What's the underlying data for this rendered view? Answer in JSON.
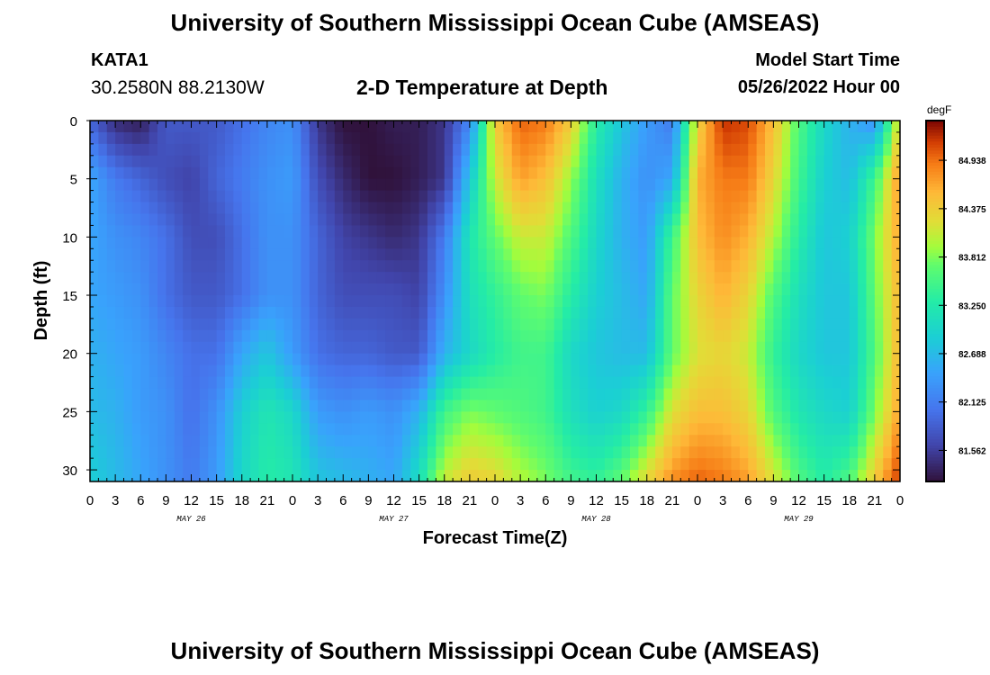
{
  "titles": {
    "top": "University of Southern Mississippi Ocean Cube (AMSEAS)",
    "bottom": "University of Southern Mississippi Ocean Cube (AMSEAS)"
  },
  "station": {
    "id": "KATA1",
    "coords": "30.2580N  88.2130W"
  },
  "plot_title": "2-D Temperature at Depth",
  "model_start": {
    "label": "Model Start Time",
    "value": "05/26/2022 Hour 00"
  },
  "chart_data": {
    "type": "heatmap",
    "title": "2-D Temperature at Depth",
    "xlabel": "Forecast Time(Z)",
    "ylabel": "Depth (ft)",
    "x_range_hours": [
      0,
      96
    ],
    "x_tick_labels": [
      "0",
      "3",
      "6",
      "9",
      "12",
      "15",
      "18",
      "21",
      "0",
      "3",
      "6",
      "9",
      "12",
      "15",
      "18",
      "21",
      "0",
      "3",
      "6",
      "9",
      "12",
      "15",
      "18",
      "21",
      "0",
      "3",
      "6",
      "9",
      "12",
      "15",
      "18",
      "21",
      "0"
    ],
    "day_labels": [
      "MAY 26",
      "MAY 27",
      "MAY 28",
      "MAY 29"
    ],
    "y_range_ft": [
      0,
      31
    ],
    "y_ticks": [
      0,
      5,
      10,
      15,
      20,
      25,
      30
    ],
    "colorbar": {
      "units": "degF",
      "min": 81.2,
      "max": 85.4,
      "tick_labels": [
        "84.938",
        "84.375",
        "83.812",
        "83.250",
        "82.688",
        "82.125",
        "81.562"
      ],
      "tick_values": [
        84.938,
        84.375,
        83.812,
        83.25,
        82.688,
        82.125,
        81.562
      ]
    },
    "depths_ft": [
      0,
      5,
      10,
      15,
      20,
      25,
      31
    ],
    "time_hours": [
      0,
      3,
      6,
      9,
      12,
      15,
      18,
      21,
      24,
      27,
      30,
      33,
      36,
      39,
      42,
      45,
      48,
      51,
      54,
      57,
      60,
      63,
      66,
      69,
      72,
      75,
      78,
      81,
      84,
      87,
      90,
      93,
      96
    ],
    "temperature_degF": [
      [
        81.9,
        81.4,
        81.3,
        81.8,
        81.8,
        81.8,
        82.0,
        82.2,
        82.3,
        81.5,
        81.2,
        81.2,
        81.3,
        81.3,
        81.5,
        82.2,
        84.4,
        85.0,
        84.9,
        84.4,
        83.3,
        82.8,
        82.4,
        82.1,
        84.3,
        85.2,
        85.1,
        84.5,
        83.6,
        83.0,
        82.6,
        82.3,
        84.3
      ],
      [
        82.5,
        82.1,
        81.9,
        81.7,
        81.6,
        81.9,
        82.1,
        82.3,
        82.4,
        81.7,
        81.4,
        81.2,
        81.2,
        81.3,
        81.5,
        82.8,
        84.1,
        84.7,
        84.5,
        83.9,
        83.1,
        82.6,
        82.3,
        82.5,
        84.6,
        84.9,
        84.9,
        84.3,
        83.5,
        82.9,
        82.7,
        83.5,
        84.8
      ],
      [
        82.5,
        82.3,
        82.2,
        82.0,
        81.7,
        81.7,
        82.0,
        82.3,
        82.3,
        81.9,
        81.6,
        81.5,
        81.4,
        81.5,
        82.1,
        83.2,
        83.7,
        84.1,
        84.1,
        83.6,
        83.0,
        82.6,
        82.4,
        83.5,
        84.5,
        84.8,
        84.6,
        84.0,
        83.3,
        82.8,
        82.9,
        83.8,
        84.7
      ],
      [
        82.5,
        82.4,
        82.3,
        82.0,
        81.8,
        81.8,
        82.0,
        82.3,
        82.3,
        81.9,
        81.7,
        81.7,
        81.7,
        81.6,
        82.3,
        83.1,
        83.4,
        83.7,
        83.8,
        83.3,
        82.9,
        82.7,
        82.5,
        83.7,
        84.3,
        84.6,
        84.3,
        83.6,
        83.1,
        82.8,
        82.8,
        83.7,
        84.6
      ],
      [
        82.6,
        82.5,
        82.4,
        82.2,
        82.0,
        82.0,
        82.5,
        82.8,
        82.4,
        82.0,
        81.9,
        81.9,
        81.8,
        81.8,
        82.6,
        83.0,
        83.3,
        83.5,
        83.5,
        83.0,
        82.8,
        82.7,
        82.7,
        83.7,
        84.2,
        84.3,
        84.1,
        83.4,
        83.0,
        82.8,
        82.8,
        83.6,
        84.6
      ],
      [
        82.7,
        82.6,
        82.4,
        82.3,
        82.0,
        82.3,
        82.9,
        83.2,
        83.0,
        82.4,
        82.3,
        82.4,
        82.3,
        82.6,
        83.5,
        83.8,
        83.7,
        83.6,
        83.5,
        83.1,
        82.9,
        83.0,
        83.4,
        84.2,
        84.5,
        84.5,
        84.3,
        83.6,
        83.2,
        83.0,
        82.9,
        83.8,
        84.7
      ],
      [
        82.9,
        82.7,
        82.5,
        82.3,
        82.1,
        82.4,
        83.0,
        83.3,
        83.2,
        82.8,
        82.7,
        82.6,
        82.5,
        83.1,
        84.1,
        84.4,
        84.3,
        84.0,
        83.8,
        83.5,
        83.4,
        83.7,
        84.3,
        84.8,
        85.0,
        84.9,
        84.7,
        84.2,
        83.6,
        83.3,
        83.6,
        84.4,
        85.2
      ]
    ]
  }
}
